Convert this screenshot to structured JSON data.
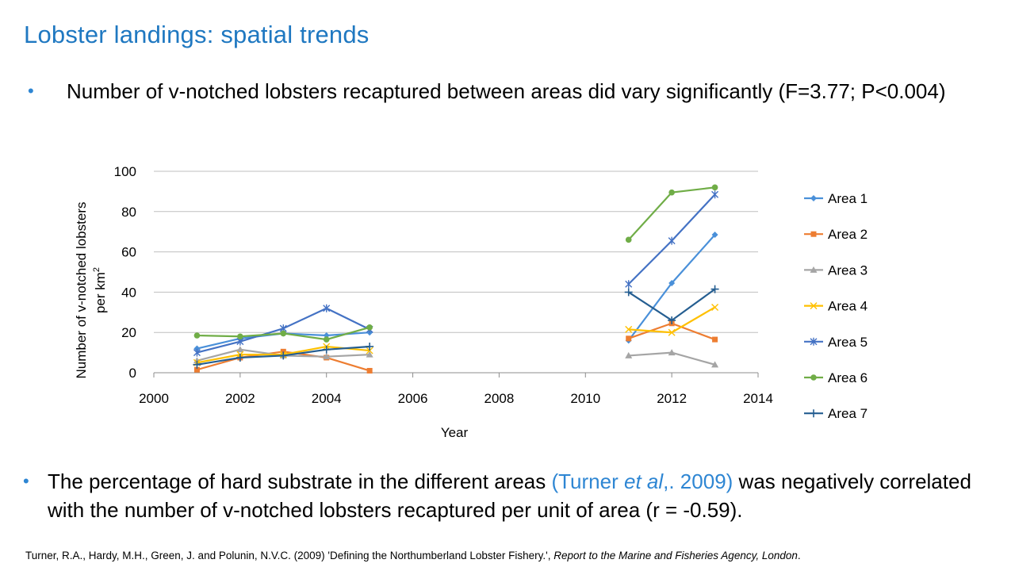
{
  "slide": {
    "title": "Lobster landings: spatial trends",
    "bullet1": "Number of v-notched lobsters recaptured between areas did vary significantly (F=3.77; P<0.004)",
    "bullet2_pre": "The percentage of hard substrate in the different areas ",
    "bullet2_cite_open": "(Turner ",
    "bullet2_cite_etal": "et al",
    "bullet2_cite_close": ",. 2009)",
    "bullet2_post": " was negatively correlated with the number of v-notched lobsters recaptured per unit of area (r = -0.59).",
    "ref_plain": "Turner, R.A., Hardy, M.H., Green, J. and Polunin, N.V.C. (2009) 'Defining the Northumberland Lobster Fishery.', ",
    "ref_italic": "Report to the Marine and Fisheries Agency, London",
    "ref_end": "."
  },
  "chart_data": {
    "type": "line",
    "xlabel": "Year",
    "ylabel_line1": "Number of v-notched lobsters",
    "ylabel_line2": "per km",
    "ylabel_sup": "2",
    "xlim": [
      2000,
      2014
    ],
    "ylim": [
      0,
      100
    ],
    "xticks": [
      2000,
      2002,
      2004,
      2006,
      2008,
      2010,
      2012,
      2014
    ],
    "yticks": [
      0,
      20,
      40,
      60,
      80,
      100
    ],
    "grid": "horizontal",
    "legend": "right",
    "series": [
      {
        "name": "Area 1",
        "color": "#4a90d9",
        "marker": "diamond",
        "segments": [
          [
            [
              2001,
              12
            ],
            [
              2002,
              17
            ],
            [
              2003,
              19.5
            ],
            [
              2004,
              18.5
            ],
            [
              2005,
              20
            ]
          ],
          [
            [
              2011,
              16
            ],
            [
              2012,
              44.5
            ],
            [
              2013,
              68.5
            ]
          ]
        ]
      },
      {
        "name": "Area 2",
        "color": "#ed7d31",
        "marker": "square",
        "segments": [
          [
            [
              2001,
              1.5
            ],
            [
              2002,
              7.5
            ],
            [
              2003,
              10.5
            ],
            [
              2004,
              7.5
            ],
            [
              2005,
              1
            ]
          ],
          [
            [
              2011,
              17
            ],
            [
              2012,
              24.5
            ],
            [
              2013,
              16.5
            ]
          ]
        ]
      },
      {
        "name": "Area 3",
        "color": "#a5a5a5",
        "marker": "triangle",
        "segments": [
          [
            [
              2001,
              6
            ],
            [
              2002,
              11.5
            ],
            [
              2003,
              8.5
            ],
            [
              2004,
              8
            ],
            [
              2005,
              9
            ]
          ],
          [
            [
              2011,
              8.5
            ],
            [
              2012,
              10
            ],
            [
              2013,
              4
            ]
          ]
        ]
      },
      {
        "name": "Area 4",
        "color": "#ffc000",
        "marker": "x",
        "segments": [
          [
            [
              2001,
              5
            ],
            [
              2002,
              9
            ],
            [
              2003,
              9
            ],
            [
              2004,
              13
            ],
            [
              2005,
              11
            ]
          ],
          [
            [
              2011,
              21.5
            ],
            [
              2012,
              20
            ],
            [
              2013,
              32.5
            ]
          ]
        ]
      },
      {
        "name": "Area 5",
        "color": "#4472c4",
        "marker": "star",
        "segments": [
          [
            [
              2001,
              10
            ],
            [
              2002,
              15.5
            ],
            [
              2003,
              22
            ],
            [
              2004,
              32
            ],
            [
              2005,
              21.5
            ]
          ],
          [
            [
              2011,
              44
            ],
            [
              2012,
              65.5
            ],
            [
              2013,
              88.5
            ]
          ]
        ]
      },
      {
        "name": "Area 6",
        "color": "#70ad47",
        "marker": "circle",
        "segments": [
          [
            [
              2001,
              18.5
            ],
            [
              2002,
              18
            ],
            [
              2003,
              19.5
            ],
            [
              2004,
              16.5
            ],
            [
              2005,
              22.5
            ]
          ],
          [
            [
              2011,
              66
            ],
            [
              2012,
              89.5
            ],
            [
              2013,
              92
            ]
          ]
        ]
      },
      {
        "name": "Area 7",
        "color": "#255e91",
        "marker": "plus",
        "segments": [
          [
            [
              2001,
              4
            ],
            [
              2002,
              7.5
            ],
            [
              2003,
              8.5
            ],
            [
              2004,
              11.5
            ],
            [
              2005,
              13
            ]
          ],
          [
            [
              2011,
              40
            ],
            [
              2012,
              26
            ],
            [
              2013,
              41.5
            ]
          ]
        ]
      }
    ]
  }
}
